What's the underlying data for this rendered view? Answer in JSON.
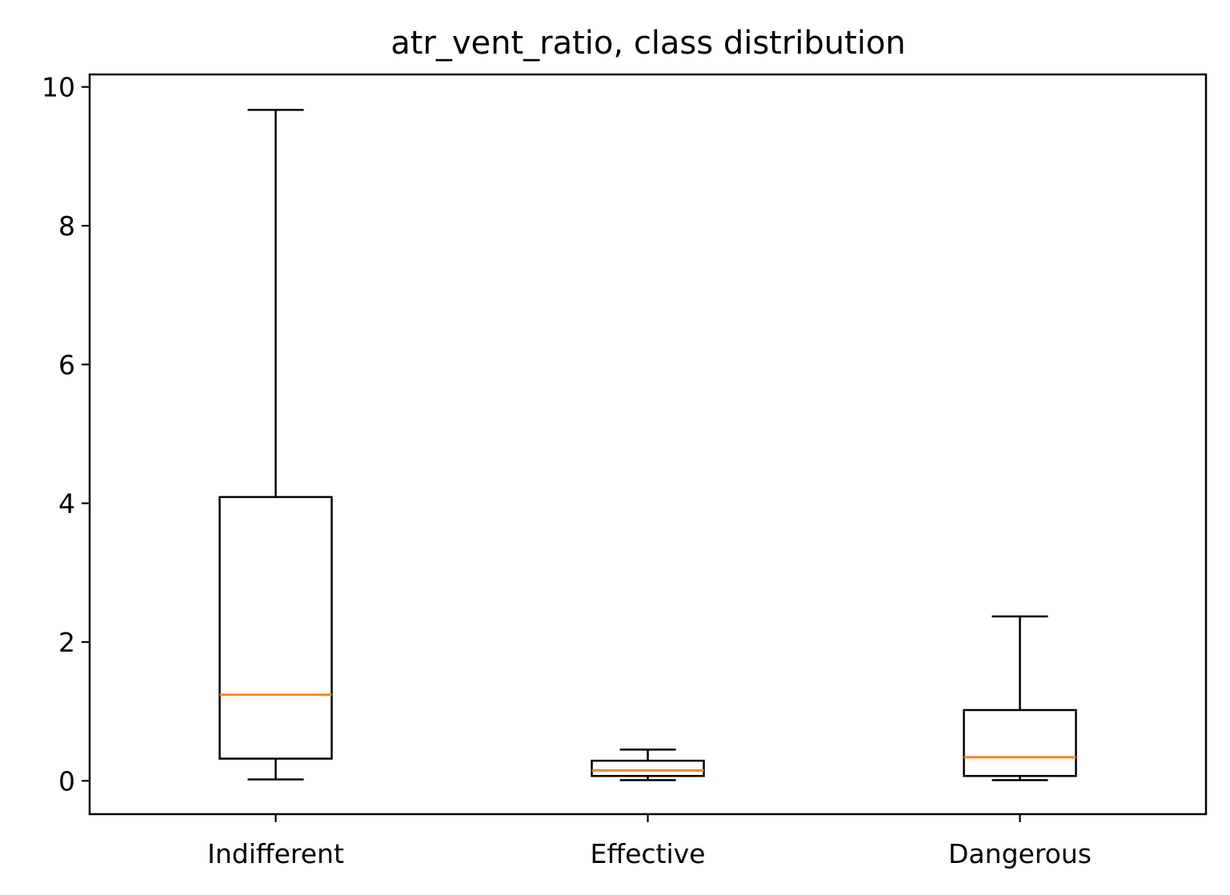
{
  "chart_data": {
    "type": "box",
    "title": "atr_vent_ratio, class distribution",
    "xlabel": "",
    "ylabel": "",
    "ylim": [
      -0.48,
      10.18
    ],
    "yticks": [
      0,
      2,
      4,
      6,
      8,
      10
    ],
    "ytick_labels": [
      "0",
      "2",
      "4",
      "6",
      "8",
      "10"
    ],
    "grid": false,
    "categories": [
      "Indifferent",
      "Effective",
      "Dangerous"
    ],
    "boxes": [
      {
        "category": "Indifferent",
        "whisker_low": 0.02,
        "q1": 0.32,
        "median": 1.24,
        "q3": 4.09,
        "whisker_high": 9.67
      },
      {
        "category": "Effective",
        "whisker_low": 0.01,
        "q1": 0.07,
        "median": 0.15,
        "q3": 0.29,
        "whisker_high": 0.45
      },
      {
        "category": "Dangerous",
        "whisker_low": 0.01,
        "q1": 0.07,
        "median": 0.34,
        "q3": 1.02,
        "whisker_high": 2.37
      }
    ],
    "colors": {
      "box": "#000000",
      "median": "#ff7f0e"
    }
  }
}
